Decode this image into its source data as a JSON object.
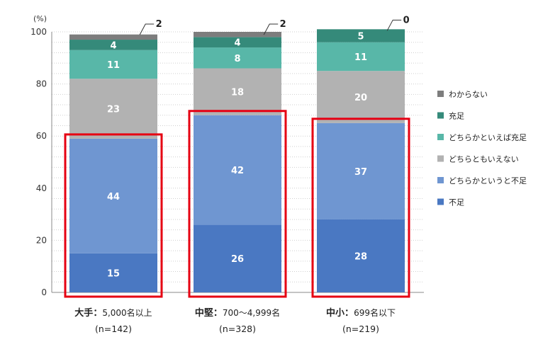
{
  "chart_data": {
    "type": "bar",
    "stacked": true,
    "unit_label": "(%)",
    "ylim": [
      0,
      100
    ],
    "yticks": [
      0,
      20,
      40,
      60,
      80,
      100
    ],
    "grid": true,
    "legend_position": "right",
    "categories": [
      {
        "name": "大手",
        "detail": "5,000名以上",
        "n": "(n=142)"
      },
      {
        "name": "中堅",
        "detail": "700～4,999名",
        "n": "(n=328)"
      },
      {
        "name": "中小",
        "detail": "699名以下",
        "n": "(n=219)"
      }
    ],
    "series": [
      {
        "name": "不足",
        "color": "#4a78c2",
        "values": [
          15,
          26,
          28
        ]
      },
      {
        "name": "どちらかというと不足",
        "color": "#6f96d1",
        "values": [
          44,
          42,
          37
        ]
      },
      {
        "name": "どちらともいえない",
        "color": "#b2b2b2",
        "values": [
          23,
          18,
          20
        ]
      },
      {
        "name": "どちらかといえば充足",
        "color": "#58b7a8",
        "values": [
          11,
          8,
          11
        ]
      },
      {
        "name": "充足",
        "color": "#358a7a",
        "values": [
          4,
          4,
          5
        ]
      },
      {
        "name": "わからない",
        "color": "#7d7d7d",
        "values": [
          2,
          2,
          0
        ]
      }
    ],
    "highlight": {
      "series": [
        "不足",
        "どちらかというと不足"
      ],
      "color": "#e60012"
    },
    "callout_series": "わからない"
  }
}
